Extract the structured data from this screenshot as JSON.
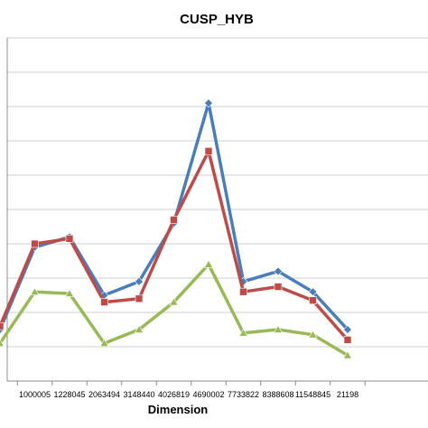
{
  "chart_data": {
    "type": "line",
    "title": "CUSP_HYB",
    "xlabel": "Dimension",
    "ylabel": "",
    "categories": [
      "",
      "1000005",
      "1228045",
      "2063494",
      "3148440",
      "4026819",
      "4690002",
      "7733822",
      "8388608",
      "11548845",
      "21198"
    ],
    "ylim": [
      0,
      10
    ],
    "grid": true,
    "series": [
      {
        "color": "#4a7ebb",
        "marker": "diamond",
        "values": [
          1.5,
          3.9,
          4.2,
          2.5,
          2.9,
          4.6,
          8.1,
          2.9,
          3.2,
          2.6,
          1.5
        ]
      },
      {
        "color": "#be4b48",
        "marker": "square",
        "values": [
          1.6,
          4.0,
          4.15,
          2.3,
          2.4,
          4.7,
          6.7,
          2.6,
          2.75,
          2.35,
          1.2
        ]
      },
      {
        "color": "#98b954",
        "marker": "triangle",
        "values": [
          1.1,
          2.6,
          2.55,
          1.1,
          1.5,
          2.3,
          3.4,
          1.4,
          1.5,
          1.35,
          0.75
        ]
      }
    ]
  }
}
